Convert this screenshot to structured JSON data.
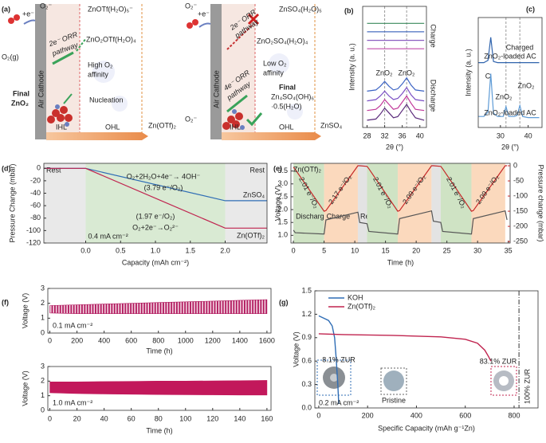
{
  "schematic": {
    "label": "(a)",
    "left": [
      "+e⁻",
      "O₂⁻",
      "ZnOTf(H₂O)₅⁻",
      "2e⁻ ORR",
      "pathway",
      "ZnO₂OTf(H₂O)₄",
      "High O₂",
      "affinity",
      "Nucleation",
      "Final",
      "ZnO₂",
      "O₂(g)",
      "Air Cathode",
      "IHL",
      "OHL",
      "Zn(OTf)₂"
    ],
    "right": [
      "+e⁻",
      "O₂⁻",
      "ZnSO₄(H₂O)₅",
      "2e⁻ ORR",
      "pathway",
      "ZnO₂SO₄(H₂O)₄",
      "Low O₂",
      "affinity",
      "Final",
      "Zn₄SO₄(OH)₆",
      "·0.5(H₂O)",
      "4e⁻ ORR",
      "pathway",
      "O₂⁻",
      "Air Cathode",
      "IHL",
      "OHL",
      "ZnSO₄"
    ]
  },
  "chart_data": [
    {
      "type": "line",
      "label": "(b)",
      "x": [
        28,
        30,
        31,
        32,
        33,
        34,
        35,
        36,
        37,
        38,
        39,
        41
      ],
      "xlim": [
        27,
        41.5
      ],
      "ylim": [
        0,
        10
      ],
      "xticks": [
        28,
        32,
        36,
        40
      ],
      "series": [
        {
          "color": "#3a8a5c",
          "values": [
            8.6,
            8.6,
            8.6,
            8.6,
            8.6,
            8.6,
            8.6,
            8.6,
            8.6,
            8.6,
            8.6,
            8.6
          ]
        },
        {
          "color": "#4a6fc0",
          "values": [
            7.9,
            7.9,
            7.9,
            7.9,
            7.9,
            7.9,
            7.9,
            7.9,
            7.9,
            7.9,
            7.9,
            7.9
          ]
        },
        {
          "color": "#8a5cc0",
          "values": [
            7.2,
            7.2,
            7.2,
            7.2,
            7.2,
            7.2,
            7.2,
            7.2,
            7.2,
            7.2,
            7.2,
            7.2
          ]
        },
        {
          "color": "#c04aa8",
          "values": [
            6.5,
            6.5,
            6.5,
            6.5,
            6.5,
            6.5,
            6.5,
            6.5,
            6.5,
            6.5,
            6.5,
            6.5
          ]
        },
        {
          "color": "#3b63c4",
          "values": [
            3.0,
            3.1,
            3.4,
            3.8,
            3.4,
            3.1,
            3.2,
            3.6,
            4.1,
            3.5,
            3.1,
            3.0
          ]
        },
        {
          "color": "#7a4fc4",
          "values": [
            2.2,
            2.3,
            2.6,
            3.0,
            2.6,
            2.3,
            2.4,
            2.8,
            3.3,
            2.7,
            2.3,
            2.2
          ]
        },
        {
          "color": "#c0389a",
          "values": [
            1.4,
            1.5,
            1.8,
            2.3,
            1.9,
            1.5,
            1.6,
            2.1,
            2.6,
            2.0,
            1.5,
            1.4
          ]
        },
        {
          "color": "#5a2a7a",
          "values": [
            0.6,
            0.7,
            1.1,
            1.6,
            1.2,
            0.8,
            0.9,
            1.4,
            1.9,
            1.3,
            0.8,
            0.6
          ]
        }
      ],
      "vlines": [
        32,
        37
      ],
      "annotations": [
        "Charge",
        "Discharge",
        "ZnO₂",
        "ZnO₂"
      ],
      "xlabel": "2θ (°)",
      "ylabel": "Intensity (a. u.)"
    },
    {
      "type": "line",
      "label": "(c)",
      "x": [
        22,
        24,
        25.5,
        26.5,
        27.5,
        29,
        31,
        32,
        33,
        35,
        36,
        37,
        38,
        40,
        44
      ],
      "xlim": [
        22,
        45
      ],
      "ylim": [
        0,
        10
      ],
      "xticks": [
        30,
        40
      ],
      "series": [
        {
          "color": "#2f63ad",
          "values": [
            5.9,
            5.9,
            6.1,
            8.2,
            6.0,
            5.9,
            5.9,
            5.9,
            5.9,
            5.9,
            5.9,
            5.9,
            5.9,
            5.9,
            5.9
          ]
        },
        {
          "color": "#5e9bd6",
          "values": [
            1.0,
            1.0,
            1.4,
            4.9,
            1.3,
            1.0,
            1.0,
            1.9,
            1.0,
            1.0,
            1.1,
            2.0,
            1.0,
            0.9,
            0.9
          ]
        }
      ],
      "vlines": [
        32,
        37
      ],
      "annotations": [
        "Charged",
        "ZnO₂-loaded AC",
        "C",
        "ZnO₂",
        "ZnO₂",
        "ZnO₂-loaded AC"
      ],
      "xlabel": "2θ (°)",
      "ylabel": "Intensity (a. u.)"
    },
    {
      "type": "line",
      "label": "(d)",
      "x": [
        -0.6,
        0,
        2,
        2.6
      ],
      "xlim": [
        -0.6,
        2.6
      ],
      "ylim": [
        -120,
        8
      ],
      "xticks": [
        {
          "value": 0,
          "label": "0.0"
        },
        0.5,
        {
          "value": 1,
          "label": "1.0"
        },
        1.5,
        {
          "value": 2,
          "label": "2.0"
        }
      ],
      "yticks": [
        0,
        -20,
        -40,
        -60,
        -80,
        -100,
        -120
      ],
      "series": [
        {
          "name": "ZnSO₄",
          "color": "#2f6db5",
          "values": [
            0,
            0,
            -52,
            -52
          ]
        },
        {
          "name": "Zn(OTf)₂",
          "color": "#c0244f",
          "values": [
            0,
            0,
            -96,
            -96
          ]
        }
      ],
      "regions": [
        {
          "label": "Rest",
          "xlim": [
            -0.6,
            0
          ],
          "color": "#e9e9e9"
        },
        {
          "label": "0.4 mA cm⁻²",
          "xlim": [
            0,
            2
          ],
          "color": "#d9ead3"
        },
        {
          "label": "Rest",
          "xlim": [
            2,
            2.6
          ],
          "color": "#e9e9e9"
        }
      ],
      "annotations": [
        "O₂+2H₂O+4e⁻→ 4OH⁻",
        "(3.79 e⁻/O₂)",
        "(1.97 e⁻/O₂)",
        "O₂+2e⁻→O₂²⁻"
      ],
      "xlabel": "Capacity (mAh cm⁻²)",
      "ylabel": "Pressure Change (mbar)"
    },
    {
      "type": "line",
      "label": "(e)",
      "x": [
        0,
        0.3,
        5,
        5.3,
        10.5,
        10.8,
        12,
        12.3,
        17,
        17.3,
        22.5,
        22.8,
        24,
        24.3,
        29,
        29.3,
        34.5,
        34.8
      ],
      "xlim": [
        -0.4,
        35.3
      ],
      "ylim": [
        0.7,
        3.8
      ],
      "y2lim": [
        -255,
        8
      ],
      "xticks": [
        0,
        5,
        10,
        15,
        20,
        25,
        30,
        35
      ],
      "yticks": [
        {
          "value": 1,
          "label": "1.0"
        },
        1.5,
        {
          "value": 2,
          "label": "2.0"
        },
        2.5,
        {
          "value": 3,
          "label": "3.0"
        },
        3.5
      ],
      "y2ticks": [
        0,
        -50,
        -100,
        -150,
        -200,
        -250
      ],
      "series": [
        {
          "color": "#555555",
          "values": [
            1.2,
            1.1,
            1.05,
            1.6,
            1.9,
            1.5,
            1.45,
            1.15,
            1.05,
            1.65,
            1.95,
            1.55,
            1.5,
            1.15,
            1.05,
            1.65,
            1.95,
            1.6
          ]
        },
        {
          "color": "#c62828",
          "axis": "y2",
          "values": [
            -5,
            -12,
            -150,
            -148,
            0,
            0,
            -2,
            -10,
            -150,
            -148,
            0,
            0,
            -2,
            -10,
            -150,
            -148,
            0,
            0
          ]
        }
      ],
      "regions": [
        {
          "label": "Discharge",
          "xlim": [
            0,
            5
          ],
          "color": "#cfe3c4"
        },
        {
          "label": "Charge",
          "xlim": [
            5,
            10.5
          ],
          "color": "#fbd9bd"
        },
        {
          "label": "Rest",
          "xlim": [
            10.5,
            12
          ],
          "color": "#e3e3e3"
        },
        {
          "xlim": [
            12,
            17
          ],
          "color": "#cfe3c4"
        },
        {
          "xlim": [
            17,
            22.5
          ],
          "color": "#fbd9bd"
        },
        {
          "xlim": [
            22.5,
            24
          ],
          "color": "#e3e3e3"
        },
        {
          "xlim": [
            24,
            29
          ],
          "color": "#cfe3c4"
        },
        {
          "xlim": [
            29,
            34.5
          ],
          "color": "#fbd9bd"
        }
      ],
      "annotations": [
        "Zn(OTf)₂",
        "2.01 e⁻/O₂",
        "2.17 e⁻/O₂",
        "2.01 e⁻/O₂",
        "2.09 e⁻/O₂",
        "2.01 e⁻/O₂",
        "2.09 e⁻/O₂"
      ],
      "xlabel": "Time (h)",
      "ylabel": "Voltage (V)",
      "y2label": "Pressure change (mbar)"
    },
    {
      "type": "band",
      "label": "(f)",
      "x": [
        0,
        200,
        400,
        600,
        800,
        1000,
        1200,
        1400,
        1600
      ],
      "xlim": [
        -15,
        1630
      ],
      "ylim": [
        0,
        3
      ],
      "xticks": [
        0,
        200,
        400,
        600,
        800,
        1000,
        1200,
        1400,
        1600
      ],
      "yticks": [
        0,
        1,
        2,
        3
      ],
      "series": [
        {
          "color": "#b0175c",
          "values": [
            1.85,
            1.9,
            1.95,
            2.0,
            2.05,
            2.1,
            2.15,
            2.2,
            2.25
          ]
        },
        {
          "color": "#b0175c",
          "values": [
            1.35,
            1.3,
            1.3,
            1.3,
            1.3,
            1.3,
            1.3,
            1.3,
            1.3
          ]
        }
      ],
      "annotations": [
        "0.1 mA cm⁻²"
      ],
      "xlabel": "Time (h)",
      "ylabel": "Voltage (V)"
    },
    {
      "type": "band",
      "x": [
        0,
        20,
        40,
        60,
        80,
        100,
        120,
        140,
        160
      ],
      "xlim": [
        -1.5,
        163
      ],
      "ylim": [
        0,
        3
      ],
      "xticks": [
        0,
        20,
        40,
        60,
        80,
        100,
        120,
        140,
        160
      ],
      "yticks": [
        0,
        1,
        2,
        3
      ],
      "series": [
        {
          "color": "#c2185b",
          "values": [
            1.95,
            1.95,
            1.97,
            1.98,
            2.0,
            2.0,
            2.02,
            2.03,
            2.05
          ]
        },
        {
          "color": "#c2185b",
          "values": [
            1.2,
            1.15,
            1.12,
            1.1,
            1.08,
            1.07,
            1.06,
            1.05,
            1.05
          ]
        }
      ],
      "annotations": [
        "1.0 mA cm⁻²"
      ],
      "xlabel": "Time (h)",
      "ylabel": "Voltage (V)"
    },
    {
      "type": "line",
      "label": "(g)",
      "xlim": [
        -16,
        898
      ],
      "ylim": [
        0,
        1.5
      ],
      "xticks": [
        0,
        200,
        400,
        600,
        800
      ],
      "yticks": [
        {
          "value": 0,
          "label": "0.0"
        },
        0.3,
        0.6,
        0.9,
        1.2,
        1.5
      ],
      "series": [
        {
          "name": "KOH",
          "color": "#2f6db5",
          "x": [
            0,
            20,
            40,
            55,
            65,
            72,
            78,
            82
          ],
          "values": [
            1.18,
            1.15,
            1.12,
            1.05,
            0.9,
            0.6,
            0.3,
            0.05
          ]
        },
        {
          "name": "Zn(OTf)₂",
          "color": "#c0244f",
          "x": [
            0,
            100,
            300,
            500,
            600,
            650,
            680,
            695,
            705
          ],
          "values": [
            0.95,
            0.94,
            0.93,
            0.91,
            0.88,
            0.83,
            0.74,
            0.66,
            0.6
          ]
        }
      ],
      "vlines": [
        820
      ],
      "annotations": [
        "8.1% ZUR",
        "Pristine",
        "83.1% ZUR",
        "0.2 mA cm⁻²",
        "100% ZUR"
      ],
      "xlabel": "Specific Capacity  (mAh g⁻¹Zn)",
      "ylabel": "Voltage (V)"
    }
  ]
}
